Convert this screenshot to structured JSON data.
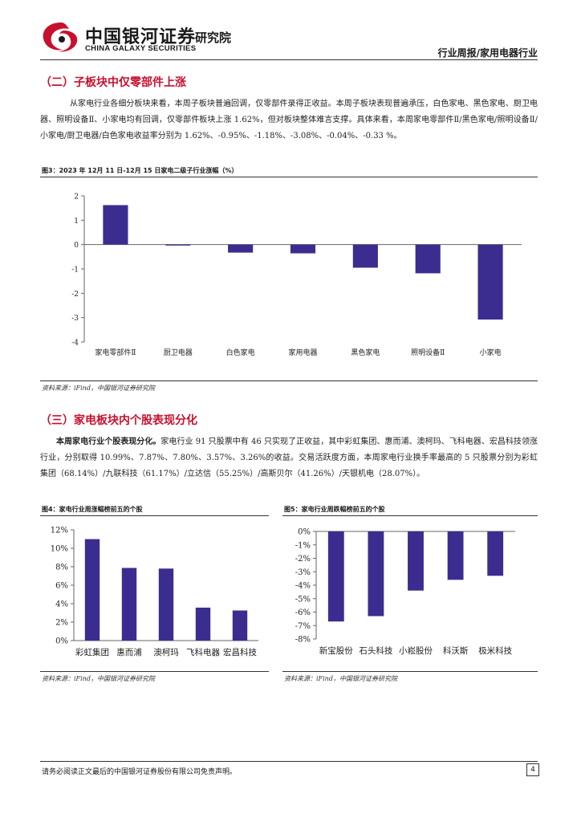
{
  "header": {
    "logo_cn": "中国银河证券",
    "logo_en": "CHINA GALAXY SECURITIES",
    "institute": "研究院",
    "right_title": "行业周报/家用电器行业"
  },
  "section2": {
    "title": "（二）子板块中仅零部件上涨",
    "paragraph": "从家电行业各细分板块来看，本周子板块普遍回调，仅零部件录得正收益。本周子板块表现普遍承压，白色家电、黑色家电、厨卫电器、照明设备Ⅱ、小家电均有回调，仅零部件板块上涨 1.62%，但对板块整体难言支撑。具体来看，本周家电零部件Ⅱ/黑色家电/照明设备Ⅱ/小家电/厨卫电器/白色家电收益率分别为 1.62%、-0.95%、-1.18%、-3.08%、-0.04%、-0.33 %。"
  },
  "fig3": {
    "caption": "图3：2023 年 12月 11 日-12月 15 日家电二级子行业涨幅（%）",
    "source": "资料来源：iFind，中国银河证券研究院"
  },
  "section3": {
    "title": "（三）家电板块内个股表现分化",
    "lead": "本周家电行业个股表现分化。",
    "paragraph": "家电行业 91 只股票中有 46 只实现了正收益，其中彩虹集团、惠而浦、澳柯玛、飞科电器、宏昌科技领涨行业，分别取得 10.99%、7.87%、7.80%、3.57%、3.26%的收益。交易活跃度方面，本周家电行业换手率最高的 5 只股票分别为彩虹集团（68.14%）/九联科技（61.17%）/立达信（55.25%）/高斯贝尔（41.26%）/天银机电（28.07%）。"
  },
  "fig4": {
    "caption": "图4：家电行业周涨幅榜前五的个股",
    "source": "资料来源：iFind，中国银河证券研究院"
  },
  "fig5": {
    "caption": "图5：家电行业周跌幅榜前五的个股",
    "source": "资料来源：iFind，中国银河证券研究院"
  },
  "footer": {
    "disclaimer": "请务必阅读正文最后的中国银河证券股份有限公司免责声明。",
    "page_number": "4"
  },
  "colors": {
    "bar": "#3b2d8f",
    "accent": "#c8102e"
  },
  "chart_data": [
    {
      "type": "bar",
      "categories": [
        "家电零部件Ⅱ",
        "厨卫电器",
        "白色家电",
        "家用电器",
        "黑色家电",
        "照明设备Ⅱ",
        "小家电"
      ],
      "values": [
        1.62,
        -0.04,
        -0.33,
        -0.36,
        -0.95,
        -1.18,
        -3.08
      ],
      "ylim": [
        -4,
        2
      ],
      "yticks": [
        "2",
        "1",
        "0",
        "-1",
        "-2",
        "-3",
        "-4"
      ],
      "grid": false
    },
    {
      "type": "bar",
      "categories": [
        "彩虹集团",
        "惠而浦",
        "澳柯玛",
        "飞科电器",
        "宏昌科技"
      ],
      "values": [
        10.99,
        7.87,
        7.8,
        3.57,
        3.26
      ],
      "ylim": [
        0,
        12
      ],
      "yticks": [
        "12%",
        "10%",
        "8%",
        "6%",
        "4%",
        "2%",
        "0%"
      ],
      "grid": false
    },
    {
      "type": "bar",
      "categories": [
        "新宝股份",
        "石头科技",
        "小崧股份",
        "科沃斯",
        "极米科技"
      ],
      "values": [
        -6.7,
        -6.3,
        -4.4,
        -3.6,
        -3.3
      ],
      "ylim": [
        -8,
        0
      ],
      "yticks": [
        "0%",
        "-1%",
        "-2%",
        "-3%",
        "-4%",
        "-5%",
        "-6%",
        "-7%",
        "-8%"
      ],
      "grid": false
    }
  ]
}
